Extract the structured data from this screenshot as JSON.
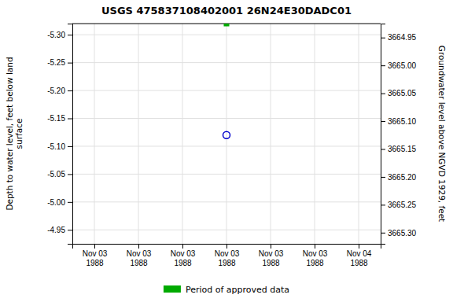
{
  "chart_data": {
    "type": "scatter",
    "title": "USGS 475837108402001 26N24E30DADC01",
    "y_label": "Depth to water level, feet below land\nsurface",
    "y2_label": "Groundwater level above NGVD 1929, feet",
    "categories": [
      "Nov 03\n1988",
      "Nov 03\n1988",
      "Nov 03\n1988",
      "Nov 03\n1988",
      "Nov 03\n1988",
      "Nov 03\n1988",
      "Nov 04\n1988"
    ],
    "series": [
      {
        "color": "#0000cc",
        "marker": "circle",
        "values": [
          null,
          null,
          null,
          -5.12,
          null,
          null,
          null
        ]
      },
      {
        "name": "Period of approved data",
        "color": "#00aa00",
        "marker": "square",
        "values": [
          null,
          null,
          null,
          -5.32,
          null,
          null,
          null
        ]
      }
    ],
    "ylim": [
      -4.925,
      -5.32
    ],
    "yticks": [
      {
        "value": -5.3,
        "label": "-5.30"
      },
      -5.25,
      {
        "value": -5.2,
        "label": "-5.20"
      },
      -5.15,
      {
        "value": -5.1,
        "label": "-5.10"
      },
      -5.05,
      {
        "value": -5.0,
        "label": "-5.00"
      },
      -4.95
    ],
    "y2lim": [
      3665.32,
      3664.925
    ],
    "y2ticks": [
      {
        "value": 3665.3,
        "label": "3665.30"
      },
      3665.25,
      {
        "value": 3665.2,
        "label": "3665.20"
      },
      3665.15,
      {
        "value": 3665.1,
        "label": "3665.10"
      },
      3665.05,
      {
        "value": 3665.0,
        "label": "3665.00"
      },
      3664.95
    ],
    "grid": true,
    "legend": "bottom"
  }
}
